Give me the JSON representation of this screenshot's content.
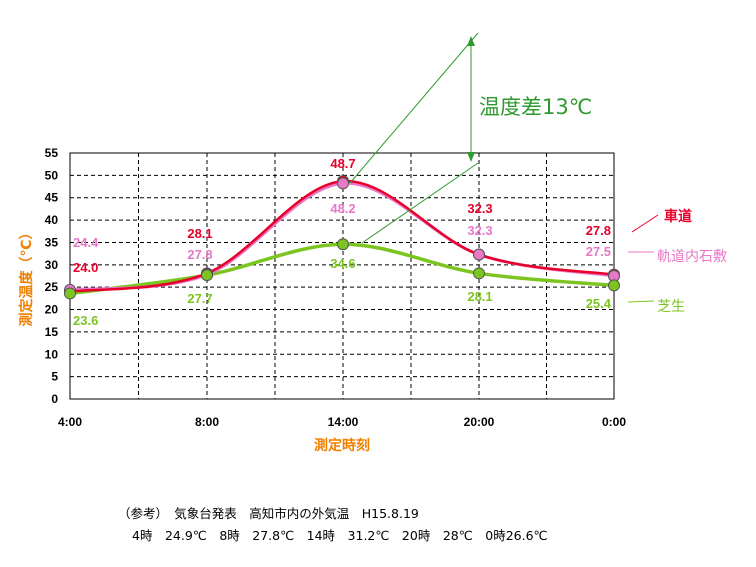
{
  "chart_data": {
    "type": "line",
    "ylabel": "測定温度（℃）",
    "xlabel": "測定時刻",
    "ylim": [
      0,
      55
    ],
    "yticks": [
      0,
      5,
      10,
      15,
      20,
      25,
      30,
      35,
      40,
      45,
      50,
      55
    ],
    "categories": [
      "4:00",
      "8:00",
      "14:00",
      "20:00",
      "0:00"
    ],
    "grid": true,
    "legend_placement": "right",
    "series": [
      {
        "name": "車道",
        "values": [
          24.0,
          28.1,
          48.7,
          32.3,
          27.8
        ],
        "color": "#e8002a",
        "labels": [
          "24.0",
          "28.1",
          "48.7",
          "32.3",
          "27.8"
        ]
      },
      {
        "name": "軌道内石敷",
        "values": [
          24.4,
          27.8,
          48.2,
          32.3,
          27.5
        ],
        "color": "#e878c8",
        "labels": [
          "24.4",
          "27.8",
          "48.2",
          "32.3",
          "27.5"
        ]
      },
      {
        "name": "芝生",
        "values": [
          23.6,
          27.7,
          34.6,
          28.1,
          25.4
        ],
        "color": "#7cc520",
        "labels": [
          "23.6",
          "27.7",
          "34.6",
          "28.1",
          "25.4"
        ]
      }
    ],
    "annotation": "温度差13℃"
  },
  "note": {
    "line1": "（参考）　気象台発表　高知市内の外気温　H15.8.19",
    "line2": "4時　24.9℃　8時　27.8℃　14時　31.2℃　20時　28℃　0時26.6℃"
  }
}
